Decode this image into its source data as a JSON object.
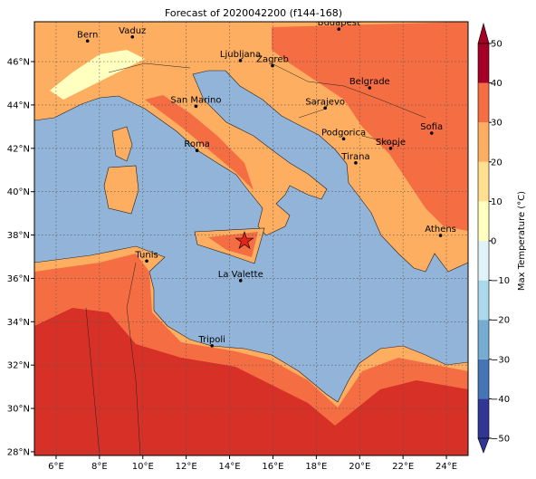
{
  "chart_data": {
    "type": "map",
    "title": "Forecast of 2020042200 (f144-168)",
    "xlim": [
      5,
      25
    ],
    "ylim": [
      27.83,
      47.84
    ],
    "xticks": [
      {
        "value": 6,
        "label": "6°E"
      },
      {
        "value": 8,
        "label": "8°E"
      },
      {
        "value": 10,
        "label": "10°E"
      },
      {
        "value": 12,
        "label": "12°E"
      },
      {
        "value": 14,
        "label": "14°E"
      },
      {
        "value": 16,
        "label": "16°E"
      },
      {
        "value": 18,
        "label": "18°E"
      },
      {
        "value": 20,
        "label": "20°E"
      },
      {
        "value": 22,
        "label": "22°E"
      },
      {
        "value": 24,
        "label": "24°E"
      }
    ],
    "yticks": [
      {
        "value": 28,
        "label": "28°N"
      },
      {
        "value": 30,
        "label": "30°N"
      },
      {
        "value": 32,
        "label": "32°N"
      },
      {
        "value": 34,
        "label": "34°N"
      },
      {
        "value": 36,
        "label": "36°N"
      },
      {
        "value": 38,
        "label": "38°N"
      },
      {
        "value": 40,
        "label": "40°N"
      },
      {
        "value": 42,
        "label": "42°N"
      },
      {
        "value": 44,
        "label": "44°N"
      },
      {
        "value": 46,
        "label": "46°N"
      }
    ],
    "grid": true,
    "cities": [
      {
        "name": "Bern",
        "lon": 7.45,
        "lat": 46.95
      },
      {
        "name": "Vaduz",
        "lon": 9.52,
        "lat": 47.14
      },
      {
        "name": "Budapest",
        "lon": 19.04,
        "lat": 47.5
      },
      {
        "name": "Ljubljana",
        "lon": 14.5,
        "lat": 46.05
      },
      {
        "name": "Zagreb",
        "lon": 15.98,
        "lat": 45.81
      },
      {
        "name": "Belgrade",
        "lon": 20.46,
        "lat": 44.79
      },
      {
        "name": "San Marino",
        "lon": 12.45,
        "lat": 43.94
      },
      {
        "name": "Sarajevo",
        "lon": 18.41,
        "lat": 43.86
      },
      {
        "name": "Sofia",
        "lon": 23.32,
        "lat": 42.7
      },
      {
        "name": "Podgorica",
        "lon": 19.26,
        "lat": 42.44
      },
      {
        "name": "Skopje",
        "lon": 21.43,
        "lat": 42.0
      },
      {
        "name": "Roma",
        "lon": 12.5,
        "lat": 41.9
      },
      {
        "name": "Tirana",
        "lon": 19.82,
        "lat": 41.33
      },
      {
        "name": "Athens",
        "lon": 23.73,
        "lat": 37.98
      },
      {
        "name": "Tunis",
        "lon": 10.18,
        "lat": 36.8
      },
      {
        "name": "La Valette",
        "lon": 14.51,
        "lat": 35.9
      },
      {
        "name": "Tripoli",
        "lon": 13.19,
        "lat": 32.89
      }
    ],
    "colorbar": {
      "label": "Max Temperature (°C)",
      "lim": [
        -50,
        50
      ],
      "levels": [
        -50,
        -40,
        -30,
        -20,
        -10,
        0,
        10,
        20,
        30,
        40,
        50
      ],
      "colors": [
        "#313695",
        "#4575b4",
        "#74add1",
        "#abd9e9",
        "#e0f3f8",
        "#ffffbf",
        "#fee090",
        "#fdae61",
        "#f46d43",
        "#a50026"
      ],
      "extend": "both",
      "ticks": [
        {
          "value": -50,
          "label": "−50"
        },
        {
          "value": -40,
          "label": "−40"
        },
        {
          "value": -30,
          "label": "−30"
        },
        {
          "value": -20,
          "label": "−20"
        },
        {
          "value": -10,
          "label": "−10"
        },
        0,
        10,
        20,
        30,
        40,
        50
      ]
    }
  }
}
